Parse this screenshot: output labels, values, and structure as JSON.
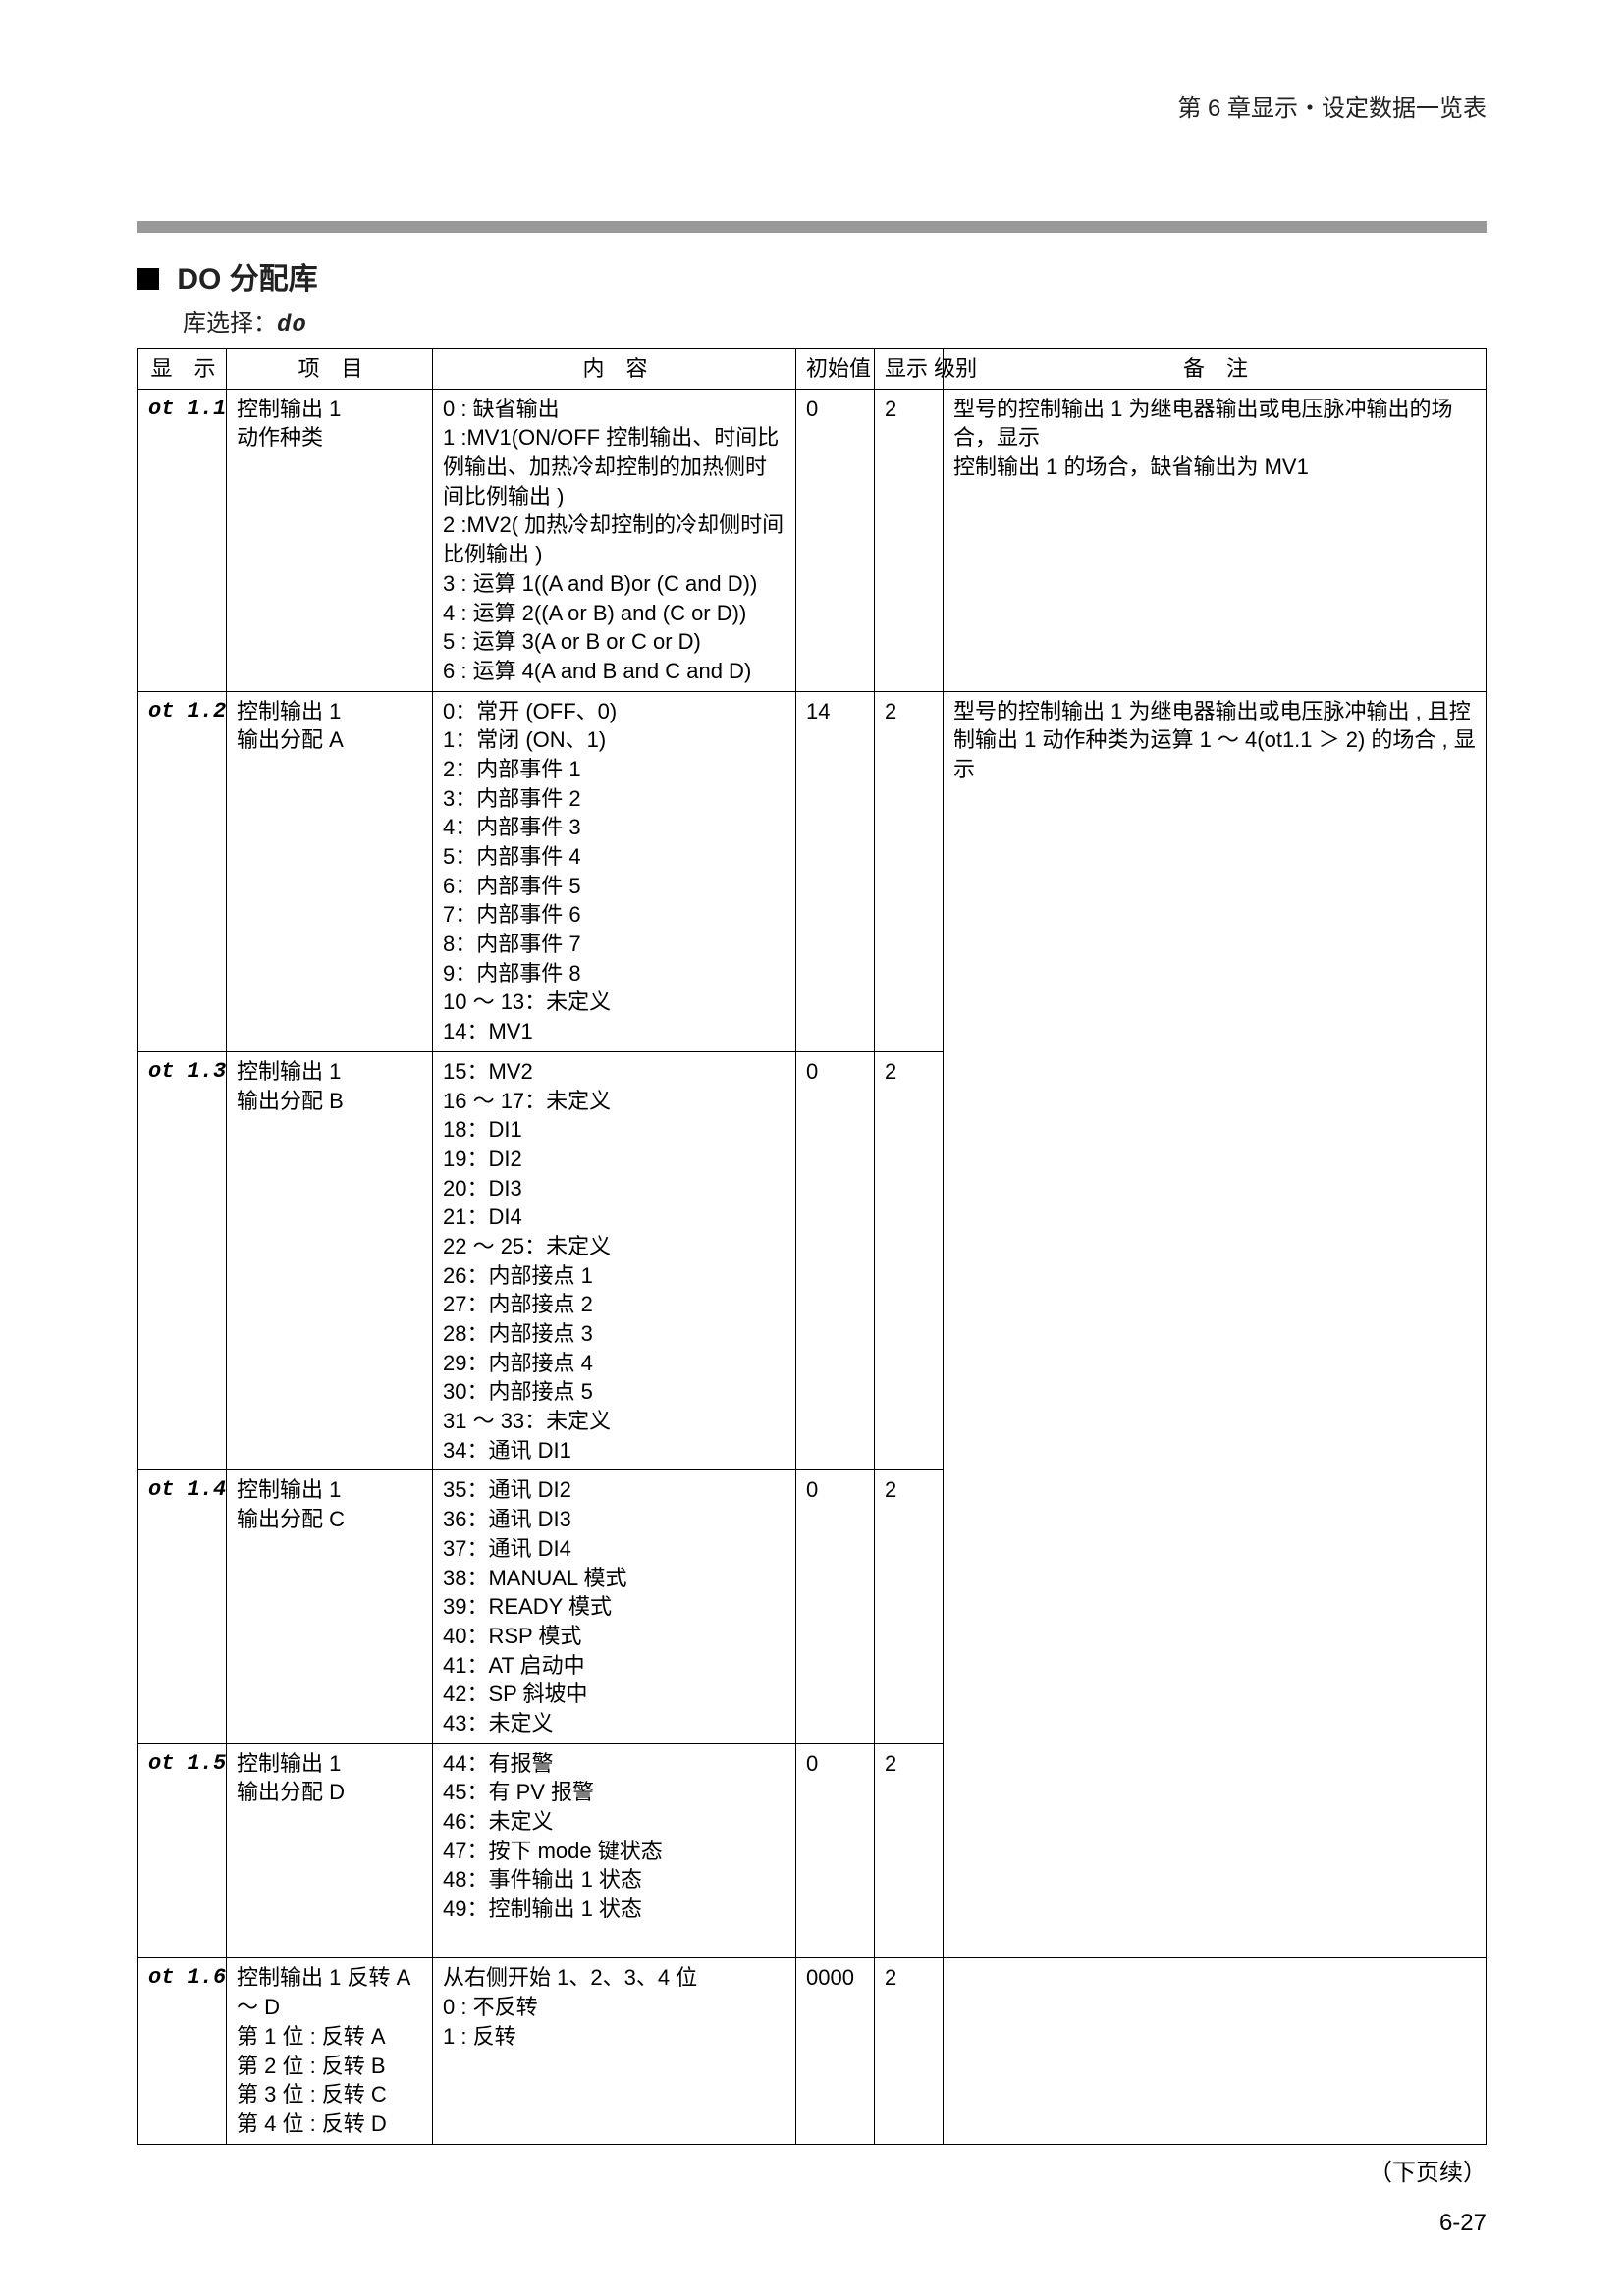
{
  "chapter_header": "第 6 章显示・设定数据一览表",
  "section_title": "DO 分配库",
  "bank_select_prefix": "库选择：",
  "bank_select_code": "do",
  "continued_text": "（下页续）",
  "page_number": "6-27",
  "table": {
    "headers": {
      "display": "显　示",
      "item": "项　目",
      "content": "内　容",
      "initial": "初始值",
      "level": "显示\n级别",
      "remark": "备　注"
    },
    "row1": {
      "display": "ot 1.1",
      "item": "控制输出 1\n动作种类",
      "content": "0 : 缺省输出\n1 :MV1(ON/OFF 控制输出、时间比例输出、加热冷却控制的加热侧时间比例输出 )\n2 :MV2( 加热冷却控制的冷却侧时间比例输出 )\n3 : 运算 1((A and B)or (C and D))\n4 : 运算 2((A or B) and (C or D))\n5 : 运算 3(A or B or C or D)\n6 : 运算 4(A and B and C and D)",
      "initial": "0",
      "level": "2",
      "remark": "型号的控制输出 1 为继电器输出或电压脉冲输出的场合，显示\n控制输出 1 的场合，缺省输出为 MV1"
    },
    "row2": {
      "display": "ot 1.2",
      "item": "控制输出 1\n输出分配 A",
      "content_part1": "0：常开 (OFF、0)\n1：常闭 (ON、1)\n2：内部事件 1\n3：内部事件 2\n4：内部事件 3\n5：内部事件 4\n6：内部事件 5\n7：内部事件 6\n8：内部事件 7\n9：内部事件 8\n10 ～ 13：未定义\n14：MV1",
      "initial": "14",
      "level": "2",
      "remark": "型号的控制输出 1 为继电器输出或电压脉冲输出 , 且控制输出 1 动作种类为运算 1 ～ 4(ot1.1 ＞ 2) 的场合 , 显示"
    },
    "row3": {
      "display": "ot 1.3",
      "item": "控制输出 1\n输出分配 B",
      "content_part2": "15：MV2\n16 ～ 17：未定义\n18：DI1\n19：DI2\n20：DI3\n21：DI4\n22 ～ 25：未定义\n26：内部接点 1\n27：内部接点 2\n28：内部接点 3\n29：内部接点 4\n30：内部接点 5\n31 ～ 33：未定义\n34：通讯 DI1",
      "initial": "0",
      "level": "2"
    },
    "row4": {
      "display": "ot 1.4",
      "item": "控制输出 1\n输出分配 C",
      "content_part3": "35：通讯 DI2\n36：通讯 DI3\n37：通讯 DI4\n38：MANUAL 模式\n39：READY 模式\n40：RSP 模式\n41：AT 启动中\n42：SP 斜坡中\n43：未定义",
      "initial": "0",
      "level": "2"
    },
    "row5": {
      "display": "ot 1.5",
      "item": "控制输出 1\n输出分配 D",
      "content_part4": "44：有报警\n45：有 PV 报警\n46：未定义\n47：按下 mode 键状态\n48：事件输出 1 状态\n49：控制输出 1 状态\n　",
      "initial": "0",
      "level": "2"
    },
    "row6": {
      "display": "ot 1.6",
      "item": "控制输出 1 反转 A ～ D\n第 1 位 : 反转 A\n第 2 位 : 反转 B\n第 3 位 : 反转 C\n第 4 位 : 反转 D",
      "content": "从右侧开始 1、2、3、4 位\n0 : 不反转\n1 : 反转",
      "initial": "0000",
      "level": "2"
    }
  }
}
